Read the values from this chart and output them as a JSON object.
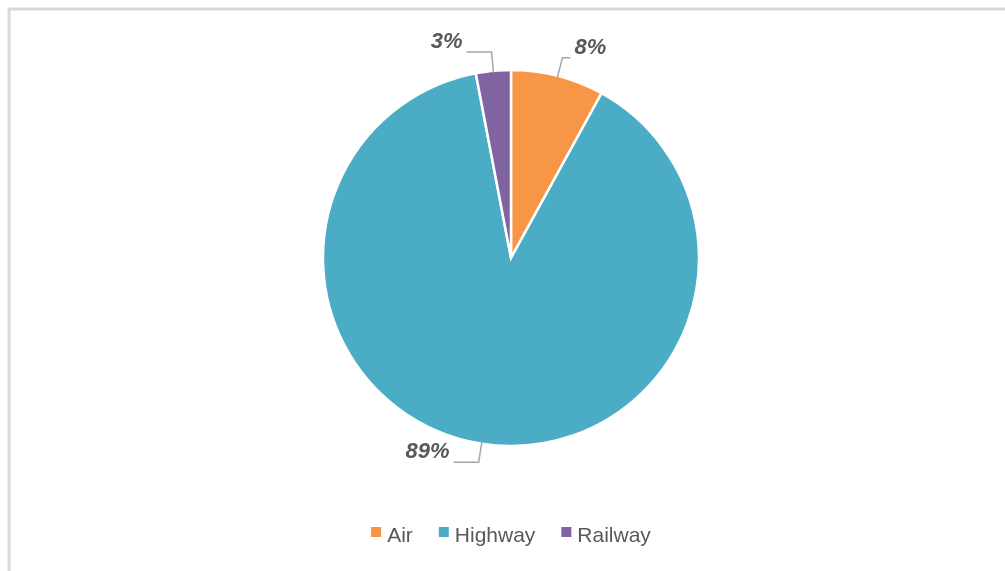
{
  "chart_data": {
    "type": "pie",
    "categories": [
      "Air",
      "Highway",
      "Railway"
    ],
    "values": [
      8,
      89,
      3
    ],
    "colors": [
      "#f79646",
      "#4bacc6",
      "#8064a2"
    ],
    "value_labels": [
      "8%",
      "89%",
      "3%"
    ],
    "legend": "bottom"
  }
}
